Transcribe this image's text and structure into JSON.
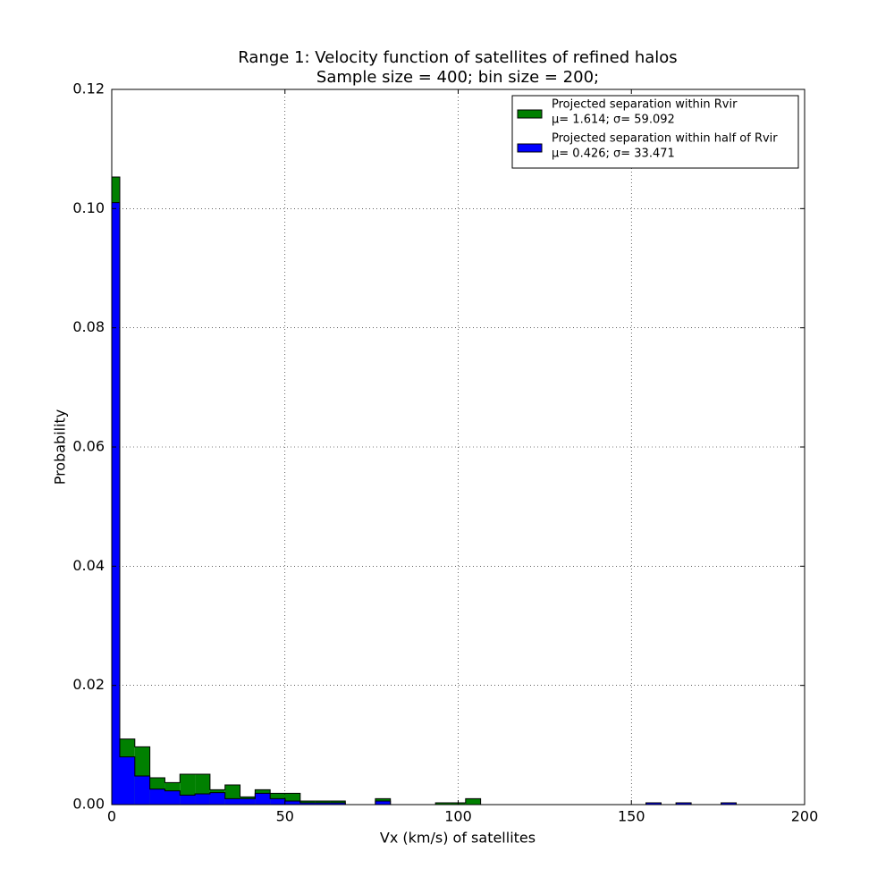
{
  "chart_data": {
    "type": "histogram",
    "title": [
      "Range 1: Velocity function of satellites of refined halos",
      "Sample size = 400; bin size = 200;"
    ],
    "xlabel": "Vx (km/s) of satellites",
    "ylabel": "Probability",
    "bins": [
      -2.02,
      2.32,
      6.66,
      11.0,
      15.34,
      19.68,
      24.02,
      28.36,
      32.7,
      37.04,
      41.38,
      45.72,
      50.06,
      54.4,
      58.74,
      63.08,
      67.42,
      71.76,
      76.1,
      80.44,
      84.78,
      89.12,
      93.46,
      97.8,
      102.14,
      106.48,
      110.82,
      115.16,
      119.5,
      123.84,
      128.18,
      132.52,
      136.86,
      141.2,
      145.54,
      149.88,
      154.22,
      158.56,
      162.9,
      167.24,
      171.58,
      175.92,
      180.26,
      184.6,
      188.94,
      193.28,
      197.62,
      201.96
    ],
    "series": [
      {
        "name": "Projected separation within Rvir",
        "stats": "μ= 1.614; σ= 59.092",
        "color": "#008000",
        "values": [
          0.1053,
          0.011,
          0.0097,
          0.0045,
          0.0037,
          0.0051,
          0.0051,
          0.0025,
          0.0033,
          0.0013,
          0.0025,
          0.0019,
          0.0019,
          0.0006,
          0.0006,
          0.0006,
          0,
          0,
          0.001,
          0,
          0,
          0,
          0.0003,
          0.0003,
          0.001,
          0,
          0,
          0,
          0,
          0,
          0,
          0,
          0,
          0,
          0,
          0,
          0.0003,
          0,
          0.0003,
          0,
          0,
          0.0003,
          0,
          0,
          0,
          0,
          0
        ]
      },
      {
        "name": "Projected separation within half of Rvir",
        "stats": "μ= 0.426; σ= 33.471",
        "color": "#0000ff",
        "values": [
          0.101,
          0.008,
          0.0048,
          0.0026,
          0.0023,
          0.0016,
          0.0018,
          0.002,
          0.001,
          0.001,
          0.0019,
          0.001,
          0.0006,
          0.0003,
          0.0003,
          0.0003,
          0,
          0,
          0.0006,
          0,
          0,
          0,
          0,
          0,
          0,
          0,
          0,
          0,
          0,
          0,
          0,
          0,
          0,
          0,
          0,
          0,
          0.0003,
          0,
          0.0003,
          0,
          0,
          0.0003,
          0,
          0,
          0,
          0,
          0
        ]
      }
    ],
    "xlim": [
      0,
      200
    ],
    "ylim": [
      0,
      0.12
    ],
    "xticks": [
      0,
      50,
      100,
      150,
      200
    ],
    "yticks": [
      {
        "value": 0,
        "label": "0.00"
      },
      {
        "value": 0.02,
        "label": "0.02"
      },
      {
        "value": 0.04,
        "label": "0.04"
      },
      {
        "value": 0.06,
        "label": "0.06"
      },
      {
        "value": 0.08,
        "label": "0.08"
      },
      {
        "value": 0.1,
        "label": "0.10"
      },
      {
        "value": 0.12,
        "label": "0.12"
      }
    ],
    "grid": true,
    "legend": "upper right"
  }
}
